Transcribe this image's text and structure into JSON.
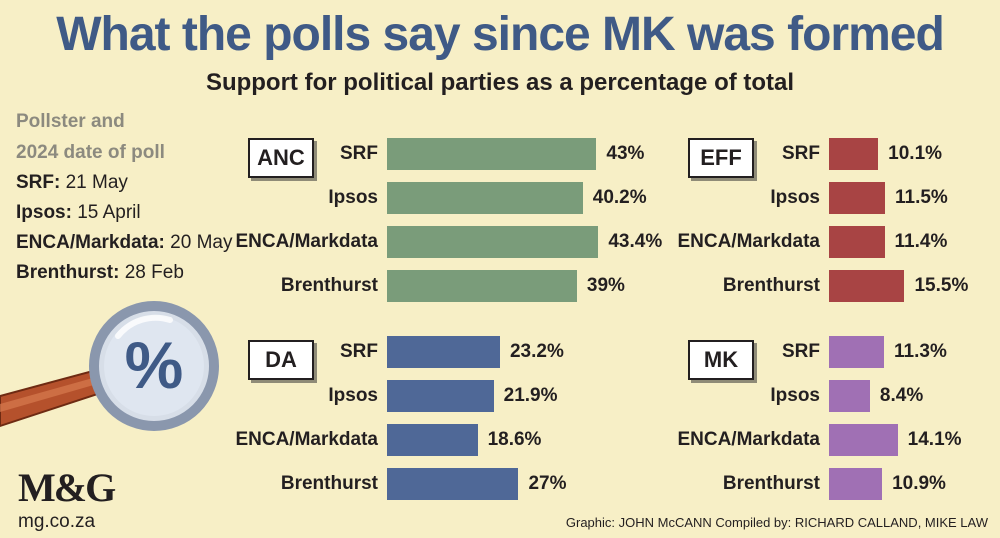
{
  "title": "What the polls say since MK was formed",
  "subtitle": "Support for political parties as a percentage of total",
  "legend": {
    "heading_line1": "Pollster and",
    "heading_line2": "2024 date of poll",
    "entries": [
      {
        "label": "SRF:",
        "date": "21 May"
      },
      {
        "label": "Ipsos:",
        "date": "15 April"
      },
      {
        "label": "ENCA/Markdata:",
        "date": "20 May"
      },
      {
        "label": "Brenthurst:",
        "date": "28 Feb"
      }
    ]
  },
  "icon": {
    "name": "magnifier-percent-icon",
    "symbol": "%"
  },
  "logo": {
    "text": "M&G",
    "url": "mg.co.za"
  },
  "credits": "Graphic: JOHN McCANN  Compiled by: RICHARD CALLAND, MIKE LAW",
  "colors": {
    "ANC": "#7a9c7a",
    "EFF": "#a84444",
    "DA": "#4f6897",
    "MK": "#a070b4"
  },
  "chart_data": {
    "type": "bar",
    "categories": [
      "SRF",
      "Ipsos",
      "ENCA/Markdata",
      "Brenthurst"
    ],
    "value_suffix": "%",
    "series": [
      {
        "name": "ANC",
        "values": [
          43,
          40.2,
          43.4,
          39
        ],
        "labels": [
          "43%",
          "40.2%",
          "43.4%",
          "39%"
        ]
      },
      {
        "name": "EFF",
        "values": [
          10.1,
          11.5,
          11.4,
          15.5
        ],
        "labels": [
          "10.1%",
          "11.5%",
          "11.4%",
          "15.5%"
        ]
      },
      {
        "name": "DA",
        "values": [
          23.2,
          21.9,
          18.6,
          27
        ],
        "labels": [
          "23.2%",
          "21.9%",
          "18.6%",
          "27%"
        ]
      },
      {
        "name": "MK",
        "values": [
          11.3,
          8.4,
          14.1,
          10.9
        ],
        "labels": [
          "11.3%",
          "8.4%",
          "14.1%",
          "10.9%"
        ]
      }
    ]
  }
}
